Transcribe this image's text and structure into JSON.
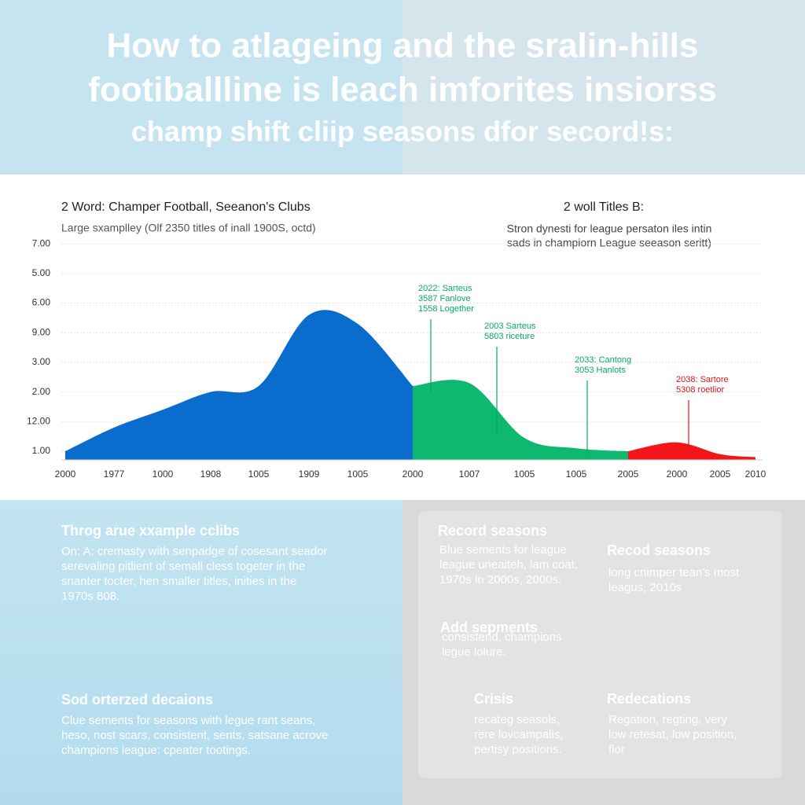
{
  "header": {
    "title_lines": [
      "How to atlageing and the sralin-hills",
      "footiballline is leach imforites insiorss",
      "champ shift cliip seasons dfor secord!s:"
    ]
  },
  "chart_data": {
    "type": "area",
    "title": "2 Word:   Champer Football, Seeanon's Clubs",
    "subtitle": "Large sxamplley (Olf 2350 titles of inall 1900S, octd)",
    "right_title": "2 woll Titles B:",
    "right_subtitle": [
      "Stron dynesti for league persaton iles intin",
      "sads in champiorn League seeason seritt)"
    ],
    "ylabels": [
      "1.00",
      "12.00",
      "2.00",
      "3.00",
      "9.00",
      "6.00",
      "5.00",
      "7.00"
    ],
    "categories": [
      "2000",
      "1977",
      "1000",
      "1908",
      "1005",
      "1909",
      "1005",
      "2000",
      "1007",
      "1005",
      "1005",
      "2005",
      "2000",
      "2005",
      "2010"
    ],
    "series": [
      {
        "color": "#0a6ccc",
        "values": [
          0,
          0.8,
          1.4,
          2.0,
          2.2,
          4.6,
          4.3,
          2.2,
          null,
          null,
          null,
          null,
          null,
          null,
          null
        ]
      },
      {
        "color": "#0db96e",
        "values": [
          null,
          null,
          null,
          null,
          null,
          null,
          null,
          2.2,
          2.3,
          0.45,
          0.1,
          0,
          null,
          null,
          null
        ]
      },
      {
        "color": "#f2161a",
        "values": [
          null,
          null,
          null,
          null,
          null,
          null,
          null,
          null,
          null,
          null,
          null,
          0,
          0.3,
          -0.1,
          -0.2
        ]
      }
    ],
    "annotations": [
      {
        "color": "#0aa866",
        "lines": [
          "2022: Sarteus",
          "3587 Fanlove",
          "1558 Logether"
        ]
      },
      {
        "color": "#0aa866",
        "lines": [
          "2003 Sarteus",
          "5803 riceture"
        ]
      },
      {
        "color": "#0aa866",
        "lines": [
          "2033: Cantong",
          "3053 Hanlots"
        ]
      },
      {
        "color": "#e01418",
        "lines": [
          "2038: Sartore",
          "5308 roetlior"
        ]
      }
    ]
  },
  "panels": [
    {
      "heading": "Throg arue xxample cclibs",
      "lines": [
        "On: A: cremasty with senpadge of cosesant seador",
        "serevaling pitlient of semall cless togeter in the",
        "snanter tocter, hen smaller titles, inities in the",
        "1970s 808."
      ]
    },
    {
      "heading": "Sod orterzed decaions",
      "lines": [
        "Clue sements for seasons with legue rant seans,",
        "heso, nost scars, consistent, sents, satsane acrove",
        "champions league: cpeater tootings."
      ]
    },
    {
      "heading": "Record seasons",
      "lines": [
        "Blue sements for league",
        "league uneaiteh, lam coat,",
        "1970s in 2000s, 2000s."
      ]
    },
    {
      "heading": "Recod seasons",
      "lines": [
        "long cnimper tean's most",
        "leagus, 2010s"
      ]
    },
    {
      "heading": "Add sepments",
      "lines": [
        "consistend, champions",
        "legue lolure."
      ]
    },
    {
      "heading": "Crisis",
      "lines": [
        "recateg seasols,",
        "rere lovcampalis,",
        "pertisy positions."
      ]
    },
    {
      "heading": "Redecations",
      "lines": [
        "Regation, regting, very",
        "low retesat, low position,",
        "flor"
      ]
    }
  ]
}
